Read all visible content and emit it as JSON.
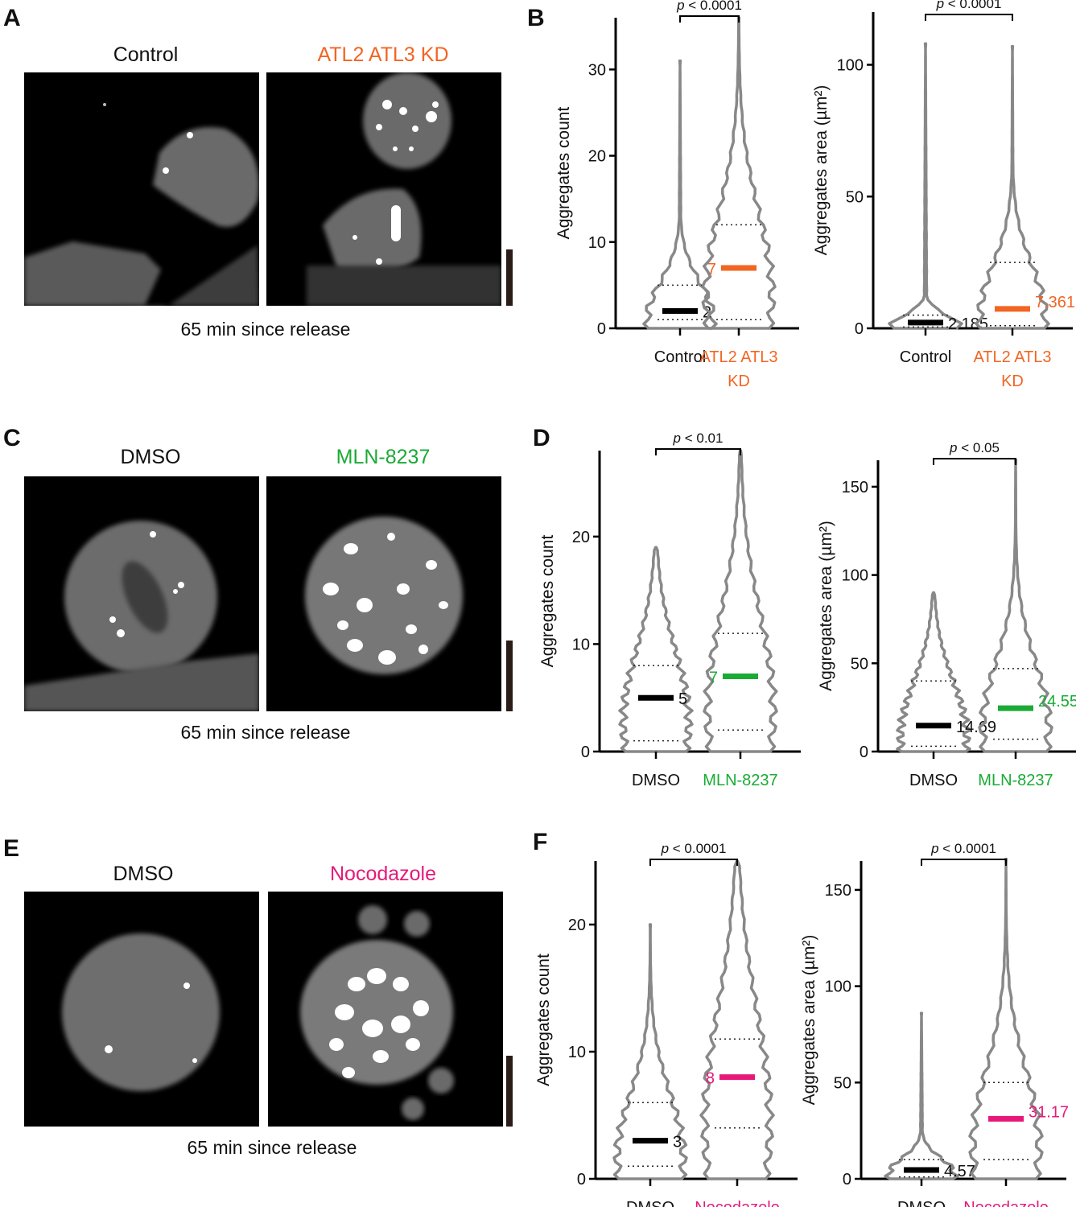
{
  "colors": {
    "violin": "#888888",
    "control": "#000000",
    "atl_kd": "#f26522",
    "mln": "#1aab35",
    "nocodazole": "#e6197a"
  },
  "panels": {
    "A": {
      "letter": "A",
      "left_label": "Control",
      "right_label": "ATL2 ATL3 KD",
      "caption": "65 min since release"
    },
    "B": {
      "letter": "B"
    },
    "C": {
      "letter": "C",
      "left_label": "DMSO",
      "right_label": "MLN-8237",
      "caption": "65 min since release"
    },
    "D": {
      "letter": "D"
    },
    "E": {
      "letter": "E",
      "left_label": "DMSO",
      "right_label": "Nocodazole",
      "caption": "65 min since release"
    },
    "F": {
      "letter": "F"
    }
  },
  "chart_data": [
    {
      "panel": "B",
      "type": "violin",
      "ylabel": "Aggregates count",
      "ylim": [
        0,
        36
      ],
      "yticks": [
        0,
        10,
        20,
        30
      ],
      "significance": "p < 0.0001",
      "categories": [
        {
          "label": "Control",
          "color": "#000000",
          "median": 2,
          "median_label": "2",
          "q1": 1,
          "q3": 5,
          "max": 31
        },
        {
          "label": "ATL2 ATL3 KD",
          "color": "#f26522",
          "median": 7,
          "median_label": "7",
          "q1": 1,
          "q3": 12,
          "max": 36
        }
      ]
    },
    {
      "panel": "B",
      "type": "violin",
      "ylabel": "Aggregates area (µm²)",
      "ylim": [
        0,
        120
      ],
      "yticks": [
        0,
        50,
        100
      ],
      "significance": "p < 0.0001",
      "categories": [
        {
          "label": "Control",
          "color": "#000000",
          "median": 2.185,
          "median_label": "2.185",
          "q1": 0.5,
          "q3": 5,
          "max": 108
        },
        {
          "label": "ATL2 ATL3 KD",
          "color": "#f26522",
          "median": 7.361,
          "median_label": "7.361",
          "q1": 1,
          "q3": 25,
          "max": 107
        }
      ]
    },
    {
      "panel": "D",
      "type": "violin",
      "ylabel": "Aggregates count",
      "ylim": [
        0,
        28
      ],
      "yticks": [
        0,
        10,
        20
      ],
      "significance": "p < 0.01",
      "categories": [
        {
          "label": "DMSO",
          "color": "#000000",
          "median": 5,
          "median_label": "5",
          "q1": 1,
          "q3": 8,
          "max": 19
        },
        {
          "label": "MLN-8237",
          "color": "#1aab35",
          "median": 7,
          "median_label": "7",
          "q1": 2,
          "q3": 11,
          "max": 28
        }
      ]
    },
    {
      "panel": "D",
      "type": "violin",
      "ylabel": "Aggregates area (µm²)",
      "ylim": [
        0,
        165
      ],
      "yticks": [
        0,
        50,
        100,
        150
      ],
      "significance": "p < 0.05",
      "categories": [
        {
          "label": "DMSO",
          "color": "#000000",
          "median": 14.69,
          "median_label": "14.69",
          "q1": 3,
          "q3": 40,
          "max": 90
        },
        {
          "label": "MLN-8237",
          "color": "#1aab35",
          "median": 24.55,
          "median_label": "24.55",
          "q1": 7,
          "q3": 47,
          "max": 165
        }
      ]
    },
    {
      "panel": "F",
      "type": "violin",
      "ylabel": "Aggregates count",
      "ylim": [
        0,
        25
      ],
      "yticks": [
        0,
        10,
        20
      ],
      "significance": "p < 0.0001",
      "categories": [
        {
          "label": "DMSO",
          "color": "#000000",
          "median": 3,
          "median_label": "3",
          "q1": 1,
          "q3": 6,
          "max": 20
        },
        {
          "label": "Nocodazole",
          "color": "#e6197a",
          "median": 8,
          "median_label": "8",
          "q1": 4,
          "q3": 11,
          "max": 25
        }
      ]
    },
    {
      "panel": "F",
      "type": "violin",
      "ylabel": "Aggregates area (µm²)",
      "ylim": [
        0,
        165
      ],
      "yticks": [
        0,
        50,
        100,
        150
      ],
      "significance": "p < 0.0001",
      "categories": [
        {
          "label": "DMSO",
          "color": "#000000",
          "median": 4.57,
          "median_label": "4.57",
          "q1": 1,
          "q3": 10,
          "max": 86
        },
        {
          "label": "Nocodazole",
          "color": "#e6197a",
          "median": 31.17,
          "median_label": "31.17",
          "q1": 10,
          "q3": 50,
          "max": 166
        }
      ]
    }
  ]
}
